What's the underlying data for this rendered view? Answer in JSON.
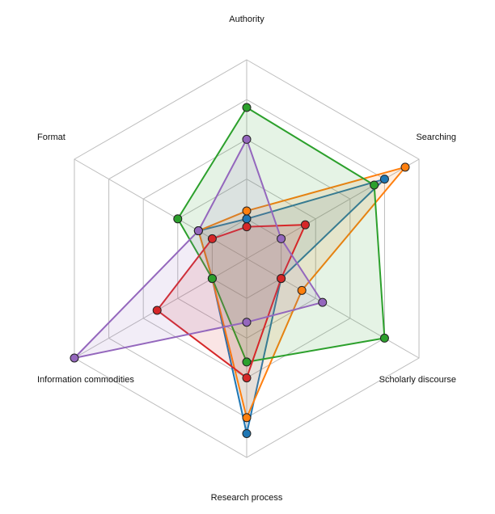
{
  "chart_data": {
    "type": "radar",
    "title": "",
    "axes": [
      "Authority",
      "Searching",
      "Scholarly discourse",
      "Research process",
      "Information commodities",
      "Format"
    ],
    "range": [
      0,
      5
    ],
    "rings": 5,
    "grid": true,
    "legend": "none",
    "series": [
      {
        "color": "#1f77b4",
        "values": [
          1.0,
          4.0,
          1.0,
          4.4,
          1.0,
          1.4
        ]
      },
      {
        "color": "#ff7f0e",
        "values": [
          1.2,
          4.6,
          1.6,
          4.0,
          1.0,
          1.4
        ]
      },
      {
        "color": "#2ca02c",
        "values": [
          3.8,
          3.7,
          4.0,
          2.6,
          1.0,
          2.0
        ]
      },
      {
        "color": "#d62728",
        "values": [
          0.8,
          1.7,
          1.0,
          3.0,
          2.6,
          1.0
        ]
      },
      {
        "color": "#9467bd",
        "values": [
          3.0,
          1.0,
          2.2,
          1.6,
          5.0,
          1.4
        ]
      }
    ]
  }
}
